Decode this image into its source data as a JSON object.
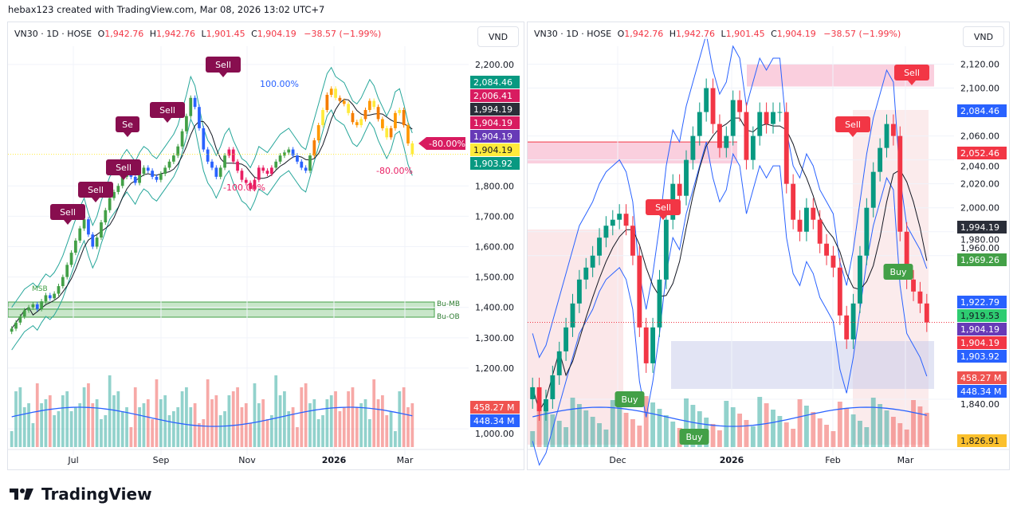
{
  "caption": "hebax123 created with TradingView.com, Mar 08, 2026 13:02 UTC+7",
  "brand": {
    "name": "TradingView",
    "icon": "tradingview-logo-icon"
  },
  "legend": {
    "symbol": "VN30 · 1D · HOSE",
    "open_label": "O",
    "open": "1,942.76",
    "high_label": "H",
    "high": "1,942.76",
    "low_label": "L",
    "low": "1,901.45",
    "close_label": "C",
    "close": "1,904.19",
    "change": "−38.57 (−1.99%)"
  },
  "currency_button": "VND",
  "colors": {
    "up": "#089981",
    "down": "#f23645",
    "sell_badge_left": "#880e4f",
    "sell_badge_right": "#f23645",
    "buy_badge": "#43a047",
    "bb": "#26a69a",
    "zigzag": "#2962ff",
    "rsi_like": "#673ab7",
    "ma": "#131722"
  },
  "chart_data": [
    {
      "type": "candlestick",
      "name": "left-chart",
      "title": "VN30 · 1D · HOSE",
      "yaxis_ticks": [
        "2,200.00",
        "1,800.00",
        "1,700.00",
        "1,600.00",
        "1,500.00",
        "1,400.00",
        "1,300.00",
        "1,200.00",
        "1,000.00"
      ],
      "ylim": [
        940,
        2260
      ],
      "xaxis_ticks": [
        "Jul",
        "Sep",
        "Nov",
        "2026",
        "Mar"
      ],
      "price_labels": [
        {
          "value": "2,084.46",
          "color": "#089981"
        },
        {
          "value": "2,006.41",
          "color": "#d81b60"
        },
        {
          "value": "1,994.19",
          "color": "#2a2e39"
        },
        {
          "value": "1,904.19",
          "color": "#d81b60"
        },
        {
          "value": "1,904.19",
          "color": "#673ab7"
        },
        {
          "value": "1,904.19",
          "color": "#ffeb3b",
          "text_color": "#131722"
        },
        {
          "value": "1,903.92",
          "color": "#089981"
        }
      ],
      "volume_labels": [
        {
          "value": "458.27 M",
          "color": "#ef5350"
        },
        {
          "value": "448.34 M",
          "color": "#2962ff"
        }
      ],
      "annotations": {
        "sell_badges": [
          "Sell",
          "Sell",
          "Sell",
          "Se",
          "Sell",
          "Sell"
        ],
        "fib_labels": [
          "100.00%",
          "-100.00%",
          "-80.00%"
        ],
        "fib_tag": "-80.00%",
        "zone_labels": [
          "Bu-MB",
          "Bu-OB"
        ],
        "structure_label": "MSB"
      },
      "close_series": [
        1330,
        1350,
        1370,
        1390,
        1400,
        1410,
        1395,
        1420,
        1440,
        1430,
        1445,
        1470,
        1500,
        1540,
        1580,
        1620,
        1660,
        1690,
        1640,
        1600,
        1630,
        1680,
        1720,
        1760,
        1780,
        1800,
        1830,
        1850,
        1830,
        1810,
        1840,
        1860,
        1850,
        1830,
        1820,
        1840,
        1860,
        1880,
        1900,
        1930,
        1980,
        2030,
        2090,
        2060,
        1990,
        1920,
        1880,
        1860,
        1830,
        1860,
        1900,
        1920,
        1880,
        1850,
        1820,
        1810,
        1790,
        1820,
        1860,
        1850,
        1840,
        1860,
        1880,
        1900,
        1910,
        1920,
        1900,
        1880,
        1860,
        1850,
        1900,
        1950,
        2000,
        2050,
        2100,
        2120,
        2090,
        2080,
        2070,
        2040,
        2010,
        2000,
        2020,
        2050,
        2080,
        2060,
        2020,
        1990,
        1960,
        1990,
        2040,
        2050,
        2000,
        1940,
        1904.19
      ]
    },
    {
      "type": "candlestick",
      "name": "right-chart",
      "title": "VN30 · 1D · HOSE",
      "yaxis_ticks": [
        "2,120.00",
        "2,100.00",
        "2,060.00",
        "2,040.00",
        "2,020.00",
        "2,000.00",
        "1,980.00",
        "1,960.00",
        "1,840.00"
      ],
      "ylim": [
        1800,
        2135
      ],
      "xaxis_ticks": [
        "Dec",
        "2026",
        "Feb",
        "Mar"
      ],
      "price_labels": [
        {
          "value": "2,084.46",
          "color": "#2962ff"
        },
        {
          "value": "2,052.46",
          "color": "#f23645"
        },
        {
          "value": "1,994.19",
          "color": "#2a2e39"
        },
        {
          "value": "1,969.26",
          "color": "#43a047"
        },
        {
          "value": "1,922.79",
          "color": "#2962ff"
        },
        {
          "value": "1,919.53",
          "color": "#2ecc71",
          "text_color": "#131722"
        },
        {
          "value": "1,904.19",
          "color": "#673ab7"
        },
        {
          "value": "1,904.19",
          "color": "#f23645"
        },
        {
          "value": "1,903.92",
          "color": "#2962ff"
        },
        {
          "value": "1,826.91",
          "color": "#fbc02d",
          "text_color": "#131722"
        }
      ],
      "volume_labels": [
        {
          "value": "458.27 M",
          "color": "#ef5350"
        },
        {
          "value": "448.34 M",
          "color": "#2962ff"
        }
      ],
      "annotations": {
        "sell_badges": [
          "Sell",
          "Sell",
          "Sell"
        ],
        "buy_badges": [
          "Buy",
          "Buy",
          "Buy"
        ]
      },
      "close_series": [
        1850,
        1830,
        1840,
        1860,
        1880,
        1900,
        1920,
        1940,
        1950,
        1960,
        1975,
        1985,
        1990,
        1995,
        1985,
        1960,
        1900,
        1870,
        1900,
        1940,
        1990,
        2020,
        2010,
        2040,
        2060,
        2080,
        2100,
        2070,
        2050,
        2060,
        2090,
        2080,
        2040,
        2060,
        2080,
        2070,
        2080,
        2080,
        2020,
        1990,
        1980,
        2000,
        1990,
        1970,
        1960,
        1950,
        1910,
        1890,
        1920,
        1960,
        2000,
        2030,
        2050,
        2070,
        2060,
        1980,
        1940,
        1930,
        1920,
        1904.19
      ]
    }
  ]
}
